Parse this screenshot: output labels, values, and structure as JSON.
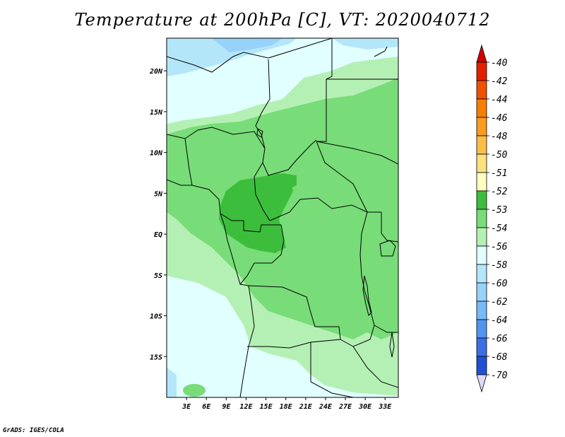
{
  "title": "Temperature at 200hPa [C], VT: 2020040712",
  "credit": "GrADS: IGES/COLA",
  "map": {
    "lon_range": [
      0,
      35
    ],
    "lat_range": [
      -20,
      24
    ],
    "lat_ticks": [
      {
        "lat": 20,
        "label": "20N"
      },
      {
        "lat": 15,
        "label": "15N"
      },
      {
        "lat": 10,
        "label": "10N"
      },
      {
        "lat": 5,
        "label": "5N"
      },
      {
        "lat": 0,
        "label": "EQ"
      },
      {
        "lat": -5,
        "label": "5S"
      },
      {
        "lat": -10,
        "label": "10S"
      },
      {
        "lat": -15,
        "label": "15S"
      }
    ],
    "lon_ticks": [
      {
        "lon": 3,
        "label": "3E"
      },
      {
        "lon": 6,
        "label": "6E"
      },
      {
        "lon": 9,
        "label": "9E"
      },
      {
        "lon": 12,
        "label": "12E"
      },
      {
        "lon": 15,
        "label": "15E"
      },
      {
        "lon": 18,
        "label": "18E"
      },
      {
        "lon": 21,
        "label": "21E"
      },
      {
        "lon": 24,
        "label": "24E"
      },
      {
        "lon": 27,
        "label": "27E"
      },
      {
        "lon": 30,
        "label": "30E"
      },
      {
        "lon": 33,
        "label": "33E"
      }
    ]
  },
  "colorbar": [
    {
      "label": "-40",
      "color": "#e61e00"
    },
    {
      "label": "-42",
      "color": "#f05000"
    },
    {
      "label": "-44",
      "color": "#f77f00"
    },
    {
      "label": "-46",
      "color": "#fa9c1e"
    },
    {
      "label": "-48",
      "color": "#fcbe46"
    },
    {
      "label": "-50",
      "color": "#fde17a"
    },
    {
      "label": "-51",
      "color": "#fefec0"
    },
    {
      "label": "-52",
      "color": "#3cbe3c"
    },
    {
      "label": "-53",
      "color": "#78dc78"
    },
    {
      "label": "-54",
      "color": "#b4f0b4"
    },
    {
      "label": "-56",
      "color": "#e1ffff"
    },
    {
      "label": "-58",
      "color": "#b4e6fa"
    },
    {
      "label": "-60",
      "color": "#96d2fa"
    },
    {
      "label": "-62",
      "color": "#78b9fa"
    },
    {
      "label": "-64",
      "color": "#5096f0"
    },
    {
      "label": "-66",
      "color": "#3c6ee6"
    },
    {
      "label": "-68",
      "color": "#1e50d2"
    },
    {
      "label": "-70",
      "color": "#0a1478"
    }
  ],
  "colorbar_top_color": "#d20000",
  "colorbar_bottom_color": "#dcdcf5"
}
